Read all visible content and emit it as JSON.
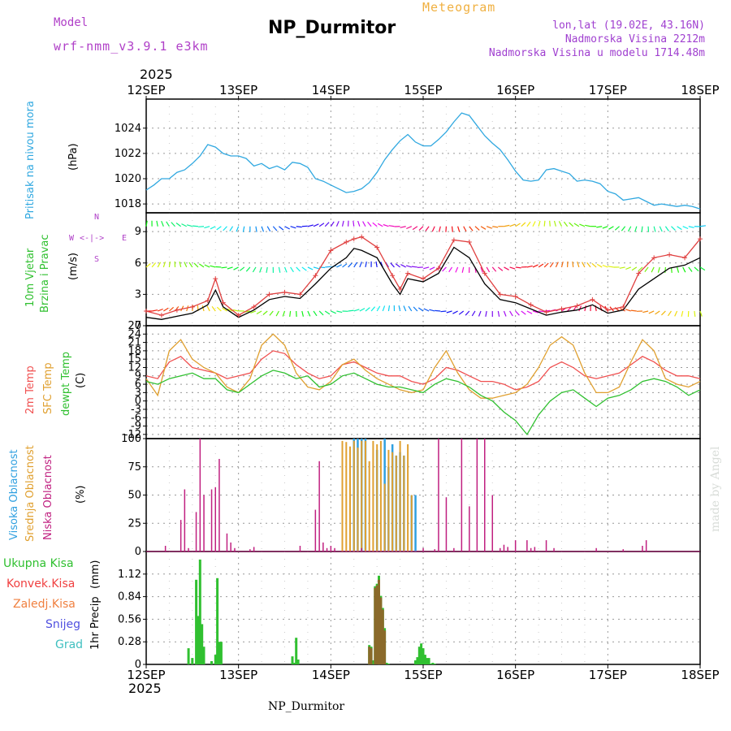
{
  "header": {
    "model_label": "Model",
    "model_name": "wrf-nmm_v3.9.1  e3km",
    "station": "NP_Durmitor",
    "meteogram_label": "Meteogram",
    "lonlat": "lon,lat (19.02E, 43.16N)",
    "elevation": "Nadmorska Visina 2212m",
    "model_elevation": "Nadmorska Visina u modelu 1714.48m",
    "year_top": "2025",
    "year_bottom": "2025",
    "footer_station": "NP_Durmitor",
    "watermark": "made by Angel"
  },
  "colors": {
    "pressure": "#30a8e0",
    "wind_speed": "#000000",
    "wind_gust": "#e04040",
    "temp2m": "#f05050",
    "sfc_temp": "#e0a030",
    "dewpt": "#30c030",
    "high_cloud": "#30a0e0",
    "mid_cloud": "#e0a030",
    "low_cloud": "#c02080",
    "total_rain": "#30c030",
    "conv_rain": "#f04040",
    "freezing_rain": "#f08040",
    "snow": "#5050e0",
    "hail": "#40c0c0",
    "grid": "#999999"
  },
  "chart_data": {
    "type": "line",
    "x_labels": [
      "12SEP",
      "13SEP",
      "14SEP",
      "15SEP",
      "16SEP",
      "17SEP",
      "18SEP"
    ],
    "x_range_hours": [
      0,
      144
    ],
    "panels": {
      "pressure": {
        "ylabel": "Pritisak na nivou mora",
        "unit": "(hPa)",
        "ylim": [
          1017.3,
          1026.3
        ],
        "ticks": [
          "1018",
          "1020",
          "1022",
          "1024"
        ],
        "tick_values": [
          1018,
          1020,
          1022,
          1024
        ],
        "x": [
          0,
          2,
          4,
          6,
          8,
          10,
          12,
          14,
          16,
          18,
          20,
          22,
          24,
          26,
          28,
          30,
          32,
          34,
          36,
          38,
          40,
          42,
          44,
          46,
          48,
          50,
          52,
          54,
          56,
          58,
          60,
          62,
          64,
          66,
          68,
          70,
          72,
          74,
          76,
          78,
          80,
          82,
          84,
          86,
          88,
          90,
          92,
          94,
          96,
          98,
          100,
          102,
          104,
          106,
          108,
          110,
          112,
          114,
          116,
          118,
          120,
          122,
          124,
          126,
          128,
          130,
          132,
          134,
          136,
          138,
          140,
          142,
          144
        ],
        "values": [
          1019.1,
          1019.5,
          1020.0,
          1020.0,
          1020.5,
          1020.7,
          1021.2,
          1021.8,
          1022.7,
          1022.5,
          1022.0,
          1021.8,
          1021.8,
          1021.6,
          1021.0,
          1021.2,
          1020.8,
          1021.0,
          1020.7,
          1021.3,
          1021.2,
          1020.9,
          1020.0,
          1019.8,
          1019.5,
          1019.2,
          1018.9,
          1019.0,
          1019.2,
          1019.7,
          1020.5,
          1021.5,
          1022.3,
          1023.0,
          1023.5,
          1022.9,
          1022.6,
          1022.6,
          1023.1,
          1023.7,
          1024.5,
          1025.2,
          1025.0,
          1024.2,
          1023.4,
          1022.8,
          1022.3,
          1021.5,
          1020.6,
          1019.9,
          1019.8,
          1019.9,
          1020.7,
          1020.8,
          1020.6,
          1020.4,
          1019.8,
          1019.9,
          1019.8,
          1019.6,
          1019.0,
          1018.8,
          1018.3,
          1018.4,
          1018.5,
          1018.2,
          1017.9,
          1018.0,
          1017.9,
          1017.8,
          1017.9,
          1017.8,
          1017.6
        ]
      },
      "wind": {
        "ylabel_1": "10m Vjetar",
        "ylabel_2": "Brzina i Pravac",
        "unit": "(m/s)",
        "compass_n": "N",
        "compass_w": "W",
        "compass_e": "E",
        "compass_s": "S",
        "ylim": [
          0,
          10.8
        ],
        "ticks": [
          "0",
          "3",
          "6",
          "9"
        ],
        "tick_values": [
          0,
          3,
          6,
          9
        ],
        "x": [
          0,
          4,
          8,
          12,
          16,
          18,
          20,
          24,
          28,
          32,
          36,
          40,
          44,
          48,
          52,
          54,
          56,
          60,
          64,
          66,
          68,
          72,
          76,
          80,
          84,
          88,
          92,
          96,
          100,
          104,
          108,
          112,
          116,
          120,
          124,
          128,
          132,
          136,
          140,
          144
        ],
        "speed": [
          0.8,
          0.6,
          0.9,
          1.2,
          2.0,
          3.4,
          1.8,
          0.8,
          1.5,
          2.5,
          2.8,
          2.6,
          4.0,
          5.5,
          6.5,
          7.4,
          7.2,
          6.5,
          4.0,
          3.0,
          4.5,
          4.2,
          5.0,
          7.5,
          6.5,
          4.0,
          2.5,
          2.2,
          1.6,
          1.0,
          1.3,
          1.5,
          2.0,
          1.2,
          1.5,
          3.5,
          4.5,
          5.5,
          5.8,
          6.5
        ],
        "gust": [
          1.4,
          1.0,
          1.5,
          1.8,
          2.4,
          4.5,
          2.2,
          1.0,
          1.8,
          3.0,
          3.2,
          3.0,
          4.8,
          7.2,
          8.0,
          8.3,
          8.5,
          7.5,
          4.8,
          3.5,
          5.0,
          4.5,
          5.5,
          8.2,
          8.0,
          5.0,
          3.0,
          2.8,
          2.0,
          1.3,
          1.6,
          1.9,
          2.5,
          1.5,
          1.8,
          5.0,
          6.5,
          6.8,
          6.5,
          8.3
        ]
      },
      "temperature": {
        "ylabel_1": "2m Temp",
        "ylabel_2": "SFC Temp",
        "ylabel_3": "dewpt Temp",
        "unit": "(C)",
        "ylim": [
          -13.5,
          27
        ],
        "ticks": [
          "-12",
          "-9",
          "-6",
          "-3",
          "0",
          "3",
          "6",
          "9",
          "12",
          "15",
          "18",
          "21",
          "24",
          "27"
        ],
        "tick_values": [
          -12,
          -9,
          -6,
          -3,
          0,
          3,
          6,
          9,
          12,
          15,
          18,
          21,
          24,
          27
        ],
        "x": [
          0,
          3,
          6,
          9,
          12,
          15,
          18,
          21,
          24,
          27,
          30,
          33,
          36,
          39,
          42,
          45,
          48,
          51,
          54,
          57,
          60,
          63,
          66,
          69,
          72,
          75,
          78,
          81,
          84,
          87,
          90,
          93,
          96,
          99,
          102,
          105,
          108,
          111,
          114,
          117,
          120,
          123,
          126,
          129,
          132,
          135,
          138,
          141,
          144
        ],
        "t2m": [
          9,
          8,
          14,
          16,
          12,
          11,
          10,
          8,
          9,
          10,
          15,
          18,
          17,
          13,
          10,
          8,
          9,
          13,
          14,
          12,
          10,
          9,
          9,
          7,
          6,
          8,
          12,
          11,
          9,
          7,
          7,
          6,
          4,
          5,
          7,
          12,
          14,
          12,
          9,
          8,
          9,
          10,
          13,
          16,
          14,
          11,
          9,
          9,
          8
        ],
        "sfc": [
          8,
          2,
          18,
          22,
          15,
          12,
          10,
          5,
          3,
          8,
          20,
          24,
          20,
          10,
          5,
          4,
          7,
          13,
          15,
          11,
          8,
          6,
          4,
          3,
          4,
          12,
          18,
          10,
          4,
          1,
          1,
          2,
          3,
          6,
          12,
          20,
          23,
          20,
          10,
          3,
          3,
          5,
          14,
          22,
          18,
          8,
          6,
          5,
          7
        ],
        "dewpt": [
          7,
          6,
          8,
          9,
          10,
          8,
          8,
          4,
          3,
          6,
          9,
          11,
          10,
          8,
          9,
          5,
          6,
          9,
          10,
          8,
          6,
          5,
          5,
          4,
          3,
          6,
          8,
          7,
          5,
          2,
          0,
          -4,
          -7,
          -12,
          -5,
          0,
          3,
          4,
          1,
          -2,
          1,
          2,
          4,
          7,
          8,
          7,
          5,
          2,
          4
        ]
      },
      "clouds": {
        "ylabel_1": "Visoka Oblacnost",
        "ylabel_2": "Srednja Oblacnost",
        "ylabel_3": "Niska Oblacnost",
        "unit": "(%)",
        "ylim": [
          0,
          100
        ],
        "ticks": [
          "0",
          "25",
          "50",
          "75",
          "100"
        ],
        "tick_values": [
          0,
          25,
          50,
          75,
          100
        ],
        "low_x": [
          5,
          9,
          10,
          11,
          13,
          14,
          15,
          17,
          18,
          19,
          21,
          22,
          23,
          27,
          28,
          40,
          44,
          45,
          46,
          47,
          48,
          49,
          56,
          72,
          75,
          76,
          78,
          80,
          82,
          84,
          86,
          88,
          90,
          92,
          93,
          94,
          96,
          99,
          100,
          101,
          104,
          106,
          117,
          124,
          129,
          130
        ],
        "low_v": [
          5,
          28,
          55,
          3,
          35,
          100,
          50,
          55,
          57,
          82,
          16,
          8,
          3,
          2,
          4,
          5,
          37,
          80,
          8,
          3,
          5,
          3,
          3,
          3,
          2,
          100,
          48,
          3,
          100,
          40,
          100,
          100,
          50,
          3,
          6,
          4,
          10,
          10,
          3,
          4,
          10,
          3,
          3,
          2,
          5,
          10
        ],
        "mid_x": [
          51,
          52,
          53,
          54,
          55,
          56,
          57,
          58,
          59,
          60,
          61,
          62,
          63,
          64,
          65,
          66,
          67,
          68,
          69
        ],
        "mid_v": [
          98,
          97,
          93,
          98,
          92,
          98,
          98,
          80,
          98,
          95,
          98,
          60,
          90,
          88,
          85,
          98,
          85,
          95,
          50
        ],
        "high_x": [
          54,
          55,
          56,
          57,
          60,
          62,
          63,
          64,
          65,
          66,
          67,
          69,
          70
        ],
        "high_v": [
          100,
          100,
          100,
          100,
          90,
          100,
          75,
          95,
          85,
          88,
          85,
          50,
          50
        ]
      },
      "precip": {
        "ylabel": "1hr Precip",
        "unit": "(mm)",
        "legend_total": "Ukupna Kisa",
        "legend_conv": "Konvek.Kisa",
        "legend_freezing": "Zaledj.Kisa",
        "legend_snow": "Snijeg",
        "legend_hail": "Grad",
        "ylim": [
          0,
          1.4
        ],
        "ticks": [
          "0",
          "0.28",
          "0.56",
          "0.84",
          "1.12"
        ],
        "tick_values": [
          0,
          0.28,
          0.56,
          0.84,
          1.12
        ],
        "total_x": [
          10,
          11,
          12,
          13,
          14,
          15,
          16,
          17,
          18,
          19,
          20,
          21,
          22,
          23,
          24,
          25,
          26,
          27,
          28,
          29,
          30,
          31,
          32,
          33,
          34,
          35,
          36,
          37,
          38,
          39,
          40,
          41,
          42,
          43,
          44,
          45,
          46,
          47,
          48,
          49,
          50,
          51,
          52,
          53,
          54,
          55,
          56,
          57,
          58,
          59,
          60,
          61,
          62,
          63,
          64,
          65,
          66,
          67,
          68,
          69,
          70,
          71,
          72,
          73,
          74,
          75,
          76,
          77,
          78,
          79,
          80,
          81,
          82,
          83,
          84,
          85,
          86,
          87,
          88,
          89,
          90,
          91,
          92,
          93,
          94,
          95,
          96,
          97,
          98,
          99,
          100,
          101,
          102,
          103,
          104,
          105,
          106,
          107,
          108,
          109,
          110,
          111,
          112,
          113,
          114,
          115,
          116,
          117,
          118,
          119,
          120,
          121,
          122,
          123,
          124,
          125,
          126,
          127,
          128,
          129,
          130,
          131,
          132,
          133,
          134,
          135,
          136,
          137,
          138,
          139,
          140,
          141,
          142,
          143,
          144
        ],
        "total_v": [
          0,
          0,
          0,
          0,
          0,
          0,
          0,
          0,
          0,
          0,
          0,
          0,
          0,
          0,
          0,
          0,
          0,
          0,
          0,
          0,
          0,
          0,
          0,
          0,
          0,
          0,
          0,
          0,
          0,
          0,
          0,
          0,
          0,
          0,
          0,
          0,
          0,
          0,
          0,
          0,
          0,
          0,
          0,
          0,
          0,
          0,
          0,
          0,
          0,
          0,
          0,
          0,
          0,
          0,
          0,
          0,
          0,
          0,
          0,
          0,
          0,
          0,
          0,
          0,
          0,
          0,
          0,
          0,
          0,
          0,
          0,
          0,
          0,
          0,
          0,
          0,
          0,
          0,
          0,
          0,
          0,
          0,
          0,
          0,
          0,
          0,
          0,
          0,
          0,
          0,
          0,
          0,
          0,
          0,
          0,
          0,
          0,
          0,
          0,
          0,
          0,
          0,
          0,
          0,
          0,
          0,
          0,
          0,
          0,
          0,
          0,
          0,
          0,
          0,
          0,
          0,
          0,
          0,
          0,
          0,
          0,
          0,
          0,
          0,
          0,
          0,
          0,
          0,
          0,
          0,
          0,
          0,
          0,
          0,
          0
        ],
        "bars_x": [
          11,
          12,
          13,
          13.5,
          14,
          14.5,
          15,
          17,
          18,
          18.5,
          19,
          19.5,
          38,
          38.5,
          39,
          39.5,
          58,
          58.5,
          59,
          59.5,
          60,
          60.5,
          61,
          61.5,
          62,
          62.5,
          63,
          70,
          70.5,
          71,
          71.5,
          72,
          72.5,
          73,
          73.5,
          74,
          74.5,
          75
        ],
        "bars_v": [
          0.2,
          0.08,
          1.05,
          0.6,
          1.3,
          0.5,
          0.22,
          0.04,
          0.12,
          1.07,
          0.28,
          0.28,
          0.1,
          0.02,
          0.33,
          0.06,
          0.24,
          0.22,
          0.05,
          0.97,
          1.0,
          1.1,
          0.85,
          0.7,
          0.45,
          0.02,
          0.01,
          0.05,
          0.09,
          0.22,
          0.26,
          0.2,
          0.12,
          0.08,
          0.08,
          0.01,
          0.02,
          0.01
        ],
        "brown_x": [
          58,
          58.5,
          59.5,
          60,
          60.5,
          61,
          61.5,
          62
        ],
        "brown_v": [
          0.22,
          0.2,
          0.95,
          0.98,
          1.05,
          0.83,
          0.68,
          0.42
        ]
      }
    }
  }
}
